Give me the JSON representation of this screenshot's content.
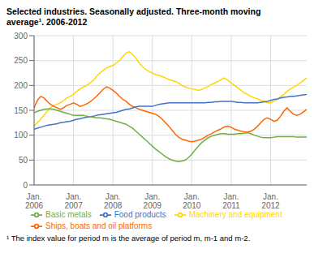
{
  "chart_data": {
    "type": "line",
    "title": "Selected industries. Seasonally adjusted. Three-month moving\naverage¹. 2006-2012",
    "footnote": "¹ The index value for period m is the average of period m, m-1 and m-2.",
    "categories": [
      "Jan.\n2006",
      null,
      null,
      null,
      null,
      null,
      null,
      null,
      null,
      null,
      null,
      null,
      "Jan.\n2007",
      null,
      null,
      null,
      null,
      null,
      null,
      null,
      null,
      null,
      null,
      null,
      "Jan.\n2008",
      null,
      null,
      null,
      null,
      null,
      null,
      null,
      null,
      null,
      null,
      null,
      "Jan.\n2009",
      null,
      null,
      null,
      null,
      null,
      null,
      null,
      null,
      null,
      null,
      null,
      "Jan.\n2010",
      null,
      null,
      null,
      null,
      null,
      null,
      null,
      null,
      null,
      null,
      null,
      "Jan.\n2011",
      null,
      null,
      null,
      null,
      null,
      null,
      null,
      null,
      null,
      null,
      null,
      "Jan.\n2012",
      null,
      null,
      null,
      null,
      null,
      null,
      null,
      null,
      null,
      null,
      null
    ],
    "ylim": [
      0,
      300
    ],
    "yticks": [
      0,
      50,
      100,
      150,
      200,
      250,
      300
    ],
    "grid": true,
    "legend": "bottom",
    "series": [
      {
        "name": "Machinery and equipment",
        "color": "#FFD700",
        "values": [
          118,
          125,
          132,
          140,
          148,
          155,
          160,
          162,
          165,
          170,
          175,
          178,
          182,
          188,
          193,
          197,
          200,
          205,
          210,
          218,
          225,
          230,
          235,
          238,
          240,
          245,
          250,
          258,
          265,
          268,
          262,
          255,
          245,
          238,
          232,
          228,
          225,
          222,
          220,
          218,
          215,
          212,
          210,
          208,
          205,
          200,
          197,
          195,
          193,
          192,
          190,
          192,
          195,
          198,
          202,
          205,
          208,
          212,
          215,
          210,
          205,
          200,
          195,
          190,
          185,
          182,
          178,
          175,
          173,
          170,
          168,
          165,
          165,
          168,
          172,
          177,
          182,
          188,
          193,
          197,
          200,
          205,
          210,
          215
        ]
      },
      {
        "name": "Ships, boats and oil platforms",
        "color": "#FF6600",
        "values": [
          155,
          170,
          178,
          175,
          168,
          162,
          158,
          155,
          152,
          155,
          160,
          162,
          165,
          162,
          158,
          160,
          163,
          167,
          172,
          178,
          185,
          192,
          197,
          195,
          190,
          185,
          178,
          172,
          168,
          162,
          158,
          155,
          152,
          150,
          148,
          146,
          144,
          142,
          138,
          132,
          125,
          118,
          110,
          102,
          96,
          92,
          90,
          88,
          87,
          88,
          90,
          92,
          96,
          100,
          103,
          107,
          110,
          113,
          117,
          118,
          116,
          112,
          110,
          108,
          107,
          106,
          108,
          112,
          118,
          125,
          132,
          135,
          132,
          128,
          130,
          138,
          148,
          155,
          148,
          142,
          140,
          142,
          147,
          152
        ]
      },
      {
        "name": "Food products",
        "color": "#4472C4",
        "values": [
          112,
          114,
          116,
          118,
          120,
          121,
          122,
          123,
          125,
          126,
          127,
          128,
          130,
          132,
          133,
          135,
          136,
          137,
          138,
          140,
          141,
          142,
          143,
          144,
          145,
          146,
          148,
          150,
          152,
          153,
          155,
          157,
          158,
          158,
          158,
          158,
          158,
          160,
          162,
          163,
          164,
          165,
          165,
          165,
          165,
          165,
          165,
          165,
          165,
          165,
          165,
          165,
          165,
          166,
          166,
          167,
          167,
          168,
          168,
          168,
          168,
          167,
          166,
          166,
          165,
          165,
          165,
          165,
          165,
          166,
          167,
          168,
          170,
          172,
          173,
          175,
          176,
          177,
          178,
          178,
          179,
          180,
          181,
          182
        ]
      },
      {
        "name": "Basic metals",
        "color": "#70AD47",
        "values": [
          145,
          148,
          150,
          152,
          153,
          153,
          152,
          150,
          148,
          146,
          144,
          142,
          140,
          140,
          140,
          140,
          138,
          137,
          136,
          135,
          135,
          134,
          133,
          132,
          130,
          128,
          126,
          124,
          122,
          118,
          114,
          108,
          102,
          96,
          90,
          84,
          78,
          72,
          67,
          62,
          57,
          53,
          50,
          48,
          47,
          48,
          50,
          55,
          62,
          70,
          78,
          85,
          90,
          95,
          98,
          100,
          102,
          103,
          103,
          102,
          102,
          102,
          103,
          103,
          104,
          105,
          103,
          100,
          98,
          96,
          95,
          95,
          95,
          96,
          97,
          97,
          97,
          97,
          97,
          97,
          96,
          96,
          96,
          96
        ]
      }
    ]
  }
}
